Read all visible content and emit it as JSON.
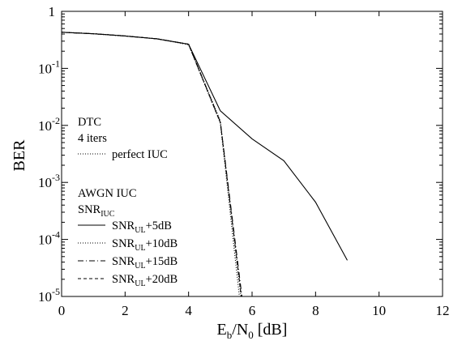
{
  "chart_data": {
    "type": "line",
    "title": "",
    "xlabel": {
      "base": "E",
      "sub_b": "b",
      "slash": "/N",
      "sub_0": "0",
      "unit": " [dB]"
    },
    "ylabel": "BER",
    "xlim": [
      0,
      12
    ],
    "ylim": [
      1e-05,
      1
    ],
    "yscale": "log",
    "x_ticks": [
      "0",
      "2",
      "4",
      "6",
      "8",
      "10",
      "12"
    ],
    "x_tick_values": [
      0,
      2,
      4,
      6,
      8,
      10,
      12
    ],
    "y_ticks": [
      {
        "value": 1,
        "base": "1",
        "exp": ""
      },
      {
        "value": 0.1,
        "base": "10",
        "exp": "-1"
      },
      {
        "value": 0.01,
        "base": "10",
        "exp": "-2"
      },
      {
        "value": 0.001,
        "base": "10",
        "exp": "-3"
      },
      {
        "value": 0.0001,
        "base": "10",
        "exp": "-4"
      },
      {
        "value": 1e-05,
        "base": "10",
        "exp": "-5"
      }
    ],
    "legend": {
      "group1_line1": "DTC",
      "group1_line2": "4 iters",
      "group2_line1": "AWGN IUC",
      "group2_snr_base": "SNR",
      "group2_snr_sub": "IUC"
    },
    "series": [
      {
        "key": "perfect",
        "label": "perfect IUC",
        "dash": "dotted",
        "x": [
          0,
          1,
          2,
          3,
          4,
          5,
          5.6
        ],
        "y": [
          0.43,
          0.405,
          0.37,
          0.33,
          0.26,
          0.011,
          1e-05
        ]
      },
      {
        "key": "snr5",
        "label_base": "SNR",
        "label_sub": "UL",
        "label_rest": "+5dB",
        "dash": "solid",
        "x": [
          0,
          1,
          2,
          3,
          4,
          5,
          6,
          7,
          8,
          9
        ],
        "y": [
          0.43,
          0.405,
          0.37,
          0.33,
          0.265,
          0.018,
          0.0058,
          0.0024,
          0.00045,
          4.3e-05
        ]
      },
      {
        "key": "snr10",
        "label_base": "SNR",
        "label_sub": "UL",
        "label_rest": "+10dB",
        "dash": "dotted",
        "x": [
          0,
          1,
          2,
          3,
          4,
          5,
          5.65
        ],
        "y": [
          0.43,
          0.405,
          0.37,
          0.33,
          0.265,
          0.012,
          1e-05
        ]
      },
      {
        "key": "snr15",
        "label_base": "SNR",
        "label_sub": "UL",
        "label_rest": "+15dB",
        "dash": "dashdot",
        "x": [
          0,
          1,
          2,
          3,
          4,
          5,
          5.68
        ],
        "y": [
          0.43,
          0.405,
          0.37,
          0.33,
          0.265,
          0.0115,
          1e-05
        ]
      },
      {
        "key": "snr20",
        "label_base": "SNR",
        "label_sub": "UL",
        "label_rest": "+20dB",
        "dash": "dashed",
        "x": [
          0,
          1,
          2,
          3,
          4,
          5,
          5.66
        ],
        "y": [
          0.43,
          0.405,
          0.37,
          0.33,
          0.265,
          0.0112,
          1e-05
        ]
      }
    ]
  }
}
